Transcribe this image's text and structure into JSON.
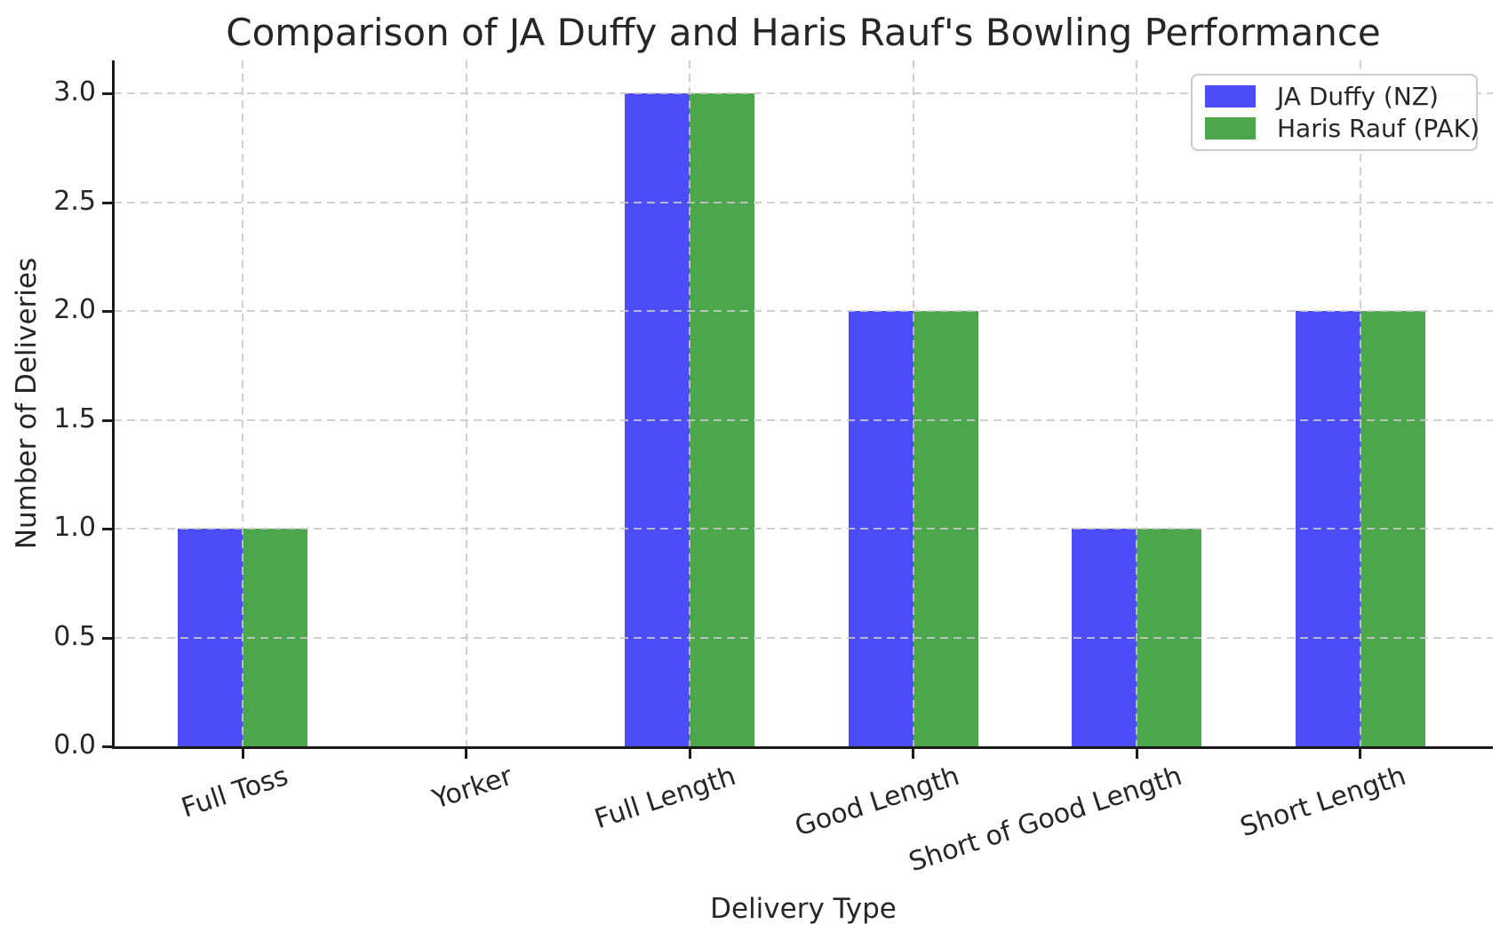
{
  "chart_data": {
    "type": "bar",
    "title": "Comparison of JA Duffy and Haris Rauf's Bowling Performance",
    "xlabel": "Delivery Type",
    "ylabel": "Number of Deliveries",
    "categories": [
      "Full Toss",
      "Yorker",
      "Full Length",
      "Good Length",
      "Short of Good Length",
      "Short Length"
    ],
    "series": [
      {
        "name": "JA Duffy (NZ)",
        "color": "#4C4DF9",
        "values": [
          1,
          0,
          3,
          2,
          1,
          2
        ]
      },
      {
        "name": "Haris Rauf (PAK)",
        "color": "#4CA64C",
        "values": [
          1,
          0,
          3,
          2,
          1,
          2
        ]
      }
    ],
    "yticks": [
      0.0,
      0.5,
      1.0,
      1.5,
      2.0,
      2.5,
      3.0
    ],
    "ytick_labels": [
      "0.0",
      "0.5",
      "1.0",
      "1.5",
      "2.0",
      "2.5",
      "3.0"
    ],
    "ylim": [
      0,
      3.15
    ],
    "grid": "dashed",
    "grid_color": "#cccccc",
    "spine_color": "#1a1a1a",
    "text_color": "#262626",
    "legend_position": "upper right"
  }
}
